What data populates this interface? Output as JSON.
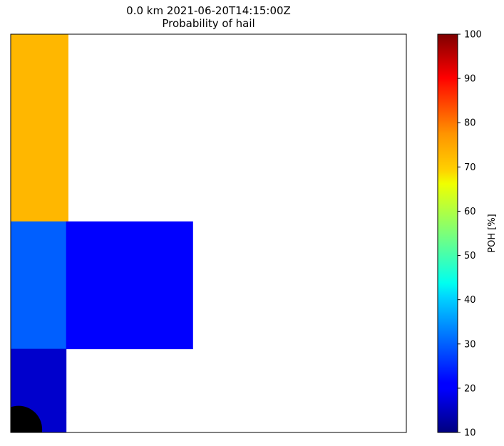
{
  "chart_data": {
    "type": "heatmap",
    "title": "0.0 km 2021-06-20T14:15:00Z",
    "subtitle": "Probability of hail",
    "colorbar": {
      "label": "POH [%]",
      "range": [
        10,
        100
      ],
      "ticks": [
        10,
        20,
        30,
        40,
        50,
        60,
        70,
        80,
        90,
        100
      ],
      "colormap": "jet"
    },
    "cells": [
      {
        "x0": 0.0,
        "x1": 0.145,
        "y0": 0.0,
        "y1": 0.145,
        "value": 75,
        "color": "#FFB700"
      },
      {
        "x0": 0.0,
        "x1": 0.145,
        "y0": 0.145,
        "y1": 0.47,
        "value": 75,
        "color": "#FFB700"
      },
      {
        "x0": 0.0,
        "x1": 0.14,
        "y0": 0.47,
        "y1": 0.79,
        "value": 30,
        "color": "#005FFF"
      },
      {
        "x0": 0.14,
        "x1": 0.46,
        "y0": 0.47,
        "y1": 0.79,
        "value": 20,
        "color": "#0000FF"
      },
      {
        "x0": 0.0,
        "x1": 0.14,
        "y0": 0.79,
        "y1": 0.95,
        "value": 13,
        "color": "#0000CC"
      },
      {
        "x0": 0.0,
        "x1": 0.14,
        "y0": 0.95,
        "y1": 1.0,
        "value": 13,
        "color": "#0000CC"
      }
    ],
    "marker": {
      "x": 0.02,
      "y": 0.96,
      "color": "#000000"
    },
    "grid": false
  }
}
